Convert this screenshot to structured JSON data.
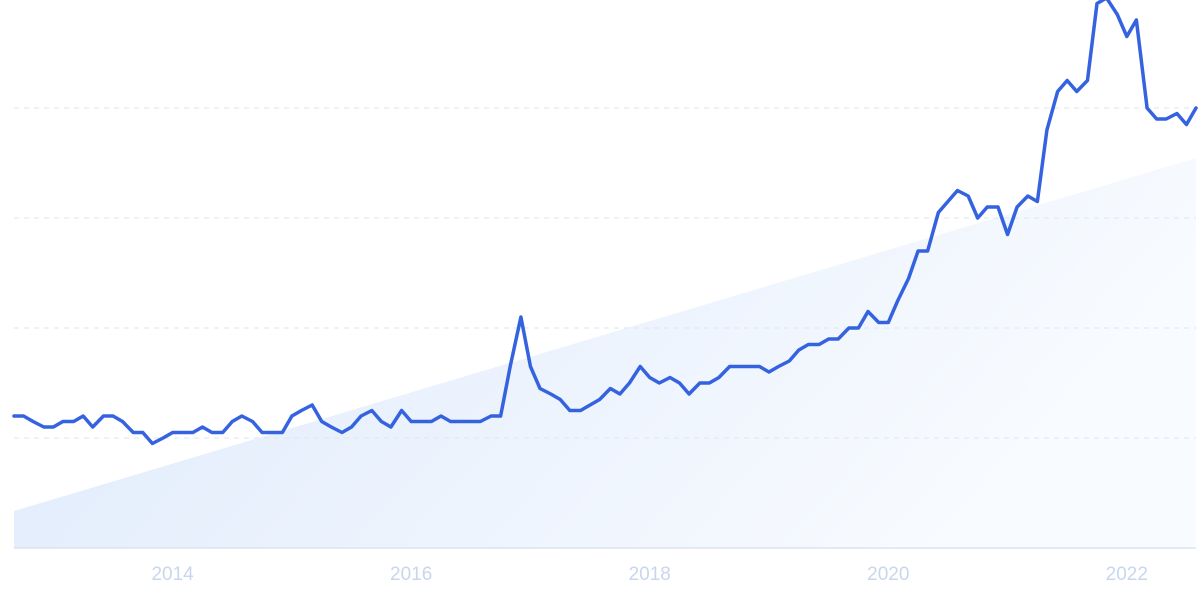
{
  "chart_data": {
    "type": "line",
    "x": [
      2012.67,
      2012.75,
      2012.83,
      2012.92,
      2013.0,
      2013.08,
      2013.17,
      2013.25,
      2013.33,
      2013.42,
      2013.5,
      2013.58,
      2013.67,
      2013.75,
      2013.83,
      2013.92,
      2014.0,
      2014.08,
      2014.17,
      2014.25,
      2014.33,
      2014.42,
      2014.5,
      2014.58,
      2014.67,
      2014.75,
      2014.83,
      2014.92,
      2015.0,
      2015.08,
      2015.17,
      2015.25,
      2015.33,
      2015.42,
      2015.5,
      2015.58,
      2015.67,
      2015.75,
      2015.83,
      2015.92,
      2016.0,
      2016.08,
      2016.17,
      2016.25,
      2016.33,
      2016.42,
      2016.5,
      2016.58,
      2016.67,
      2016.75,
      2016.83,
      2016.92,
      2017.0,
      2017.08,
      2017.17,
      2017.25,
      2017.33,
      2017.42,
      2017.5,
      2017.58,
      2017.67,
      2017.75,
      2017.83,
      2017.92,
      2018.0,
      2018.08,
      2018.17,
      2018.25,
      2018.33,
      2018.42,
      2018.5,
      2018.58,
      2018.67,
      2018.75,
      2018.83,
      2018.92,
      2019.0,
      2019.08,
      2019.17,
      2019.25,
      2019.33,
      2019.42,
      2019.5,
      2019.58,
      2019.67,
      2019.75,
      2019.83,
      2019.92,
      2020.0,
      2020.08,
      2020.17,
      2020.25,
      2020.33,
      2020.42,
      2020.5,
      2020.58,
      2020.67,
      2020.75,
      2020.83,
      2020.92,
      2021.0,
      2021.08,
      2021.17,
      2021.25,
      2021.33,
      2021.42,
      2021.5,
      2021.58,
      2021.67,
      2021.75,
      2021.83,
      2021.92,
      2022.0,
      2022.08,
      2022.17,
      2022.25,
      2022.33,
      2022.42,
      2022.5,
      2022.58
    ],
    "series": [
      {
        "color": "#3563e0",
        "values": [
          24,
          24,
          23,
          22,
          22,
          23,
          23,
          24,
          22,
          24,
          24,
          23,
          21,
          21,
          19,
          20,
          21,
          21,
          21,
          22,
          21,
          21,
          23,
          24,
          23,
          21,
          21,
          21,
          24,
          25,
          26,
          23,
          22,
          21,
          22,
          24,
          25,
          23,
          22,
          25,
          23,
          23,
          23,
          24,
          23,
          23,
          23,
          23,
          24,
          24,
          33,
          42,
          33,
          29,
          28,
          27,
          25,
          25,
          26,
          27,
          29,
          28,
          30,
          33,
          31,
          30,
          31,
          30,
          28,
          30,
          30,
          31,
          33,
          33,
          33,
          33,
          32,
          33,
          34,
          36,
          37,
          37,
          38,
          38,
          40,
          40,
          43,
          41,
          41,
          45,
          49,
          54,
          54,
          61,
          63,
          65,
          64,
          60,
          62,
          62,
          57,
          62,
          64,
          63,
          76,
          83,
          85,
          83,
          85,
          99,
          100,
          97,
          93,
          96,
          80,
          78,
          78,
          79,
          77,
          80
        ]
      }
    ],
    "xlim": [
      2012.67,
      2022.58
    ],
    "xticks": [
      2014,
      2016,
      2018,
      2020,
      2022
    ],
    "ylim": [
      0,
      100
    ],
    "yticks": [
      20,
      40,
      60,
      80
    ],
    "grid": true
  }
}
